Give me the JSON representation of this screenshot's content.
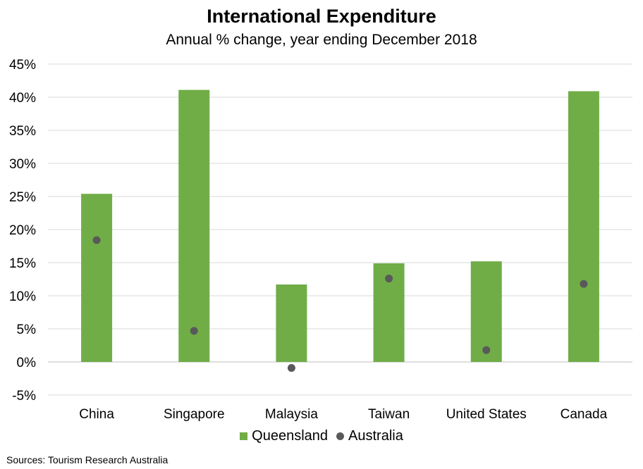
{
  "chart_data": {
    "type": "bar",
    "title": "International Expenditure",
    "subtitle": "Annual % change, year ending December 2018",
    "categories": [
      "China",
      "Singapore",
      "Malaysia",
      "Taiwan",
      "United States",
      "Canada"
    ],
    "series": [
      {
        "name": "Queensland",
        "kind": "bar",
        "color": "#70AD47",
        "values": [
          25.4,
          41.1,
          11.7,
          14.9,
          15.2,
          40.9
        ]
      },
      {
        "name": "Australia",
        "kind": "dot",
        "color": "#595959",
        "values": [
          18.4,
          4.7,
          -0.9,
          12.6,
          1.8,
          11.8
        ]
      }
    ],
    "ylim": [
      -5,
      45
    ],
    "yticks": [
      -5,
      0,
      5,
      10,
      15,
      20,
      25,
      30,
      35,
      40,
      45
    ],
    "ytick_format": "%",
    "grid": true,
    "legend_position": "bottom"
  },
  "source_note": "Sources: Tourism Research Australia"
}
